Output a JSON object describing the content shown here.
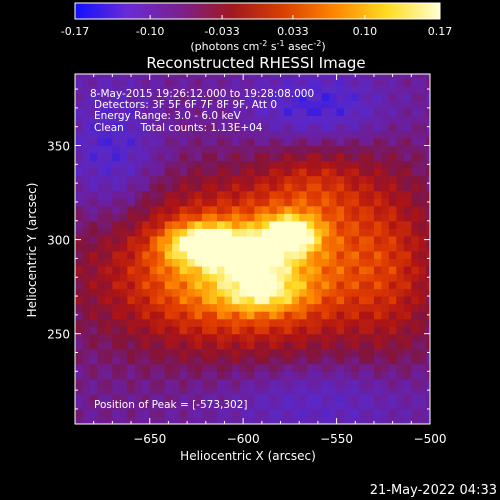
{
  "colorbar": {
    "ticks": [
      "-0.17",
      "-0.10",
      "-0.033",
      "0.033",
      "0.10",
      "0.17"
    ],
    "tick_values": [
      -0.17,
      -0.1,
      -0.033,
      0.033,
      0.1,
      0.17
    ],
    "range": [
      -0.17,
      0.17
    ],
    "units_prefix": "(photons cm",
    "units_exp1": "-2",
    "units_mid": " s",
    "units_exp2": "-1",
    "units_mid2": " asec",
    "units_exp3": "-2",
    "units_suffix": ")",
    "colors": [
      "#1010ff",
      "#6a2bd6",
      "#7a2090",
      "#a01820",
      "#d84000",
      "#ff8800",
      "#ffdd22",
      "#ffffd0"
    ]
  },
  "chart_data": {
    "type": "heatmap",
    "title": "Reconstructed RHESSI Image",
    "xlabel": "Heliocentric X (arcsec)",
    "ylabel": "Heliocentric Y (arcsec)",
    "xlim": [
      -690,
      -500
    ],
    "ylim": [
      202,
      388
    ],
    "x_ticks": [
      -650,
      -600,
      -550,
      -500
    ],
    "x_tick_labels": [
      "−650",
      "−600",
      "−550",
      "−500"
    ],
    "y_ticks": [
      250,
      300,
      350
    ],
    "y_tick_labels": [
      "250",
      "300",
      "350"
    ],
    "peak": [
      -573,
      302
    ],
    "annotations": {
      "time": "8-May-2015 19:26:12.000 to 19:28:08.000",
      "detectors": "Detectors: 3F 5F 6F 7F 8F 9F, Att 0",
      "energy": "Energy Range: 3.0 - 6.0 keV",
      "clean": "Clean     Total counts: 1.13E+04",
      "peak_label": "Position of Peak = [-573,302]"
    }
  },
  "footer": {
    "date": "21-May-2022 04:33"
  }
}
